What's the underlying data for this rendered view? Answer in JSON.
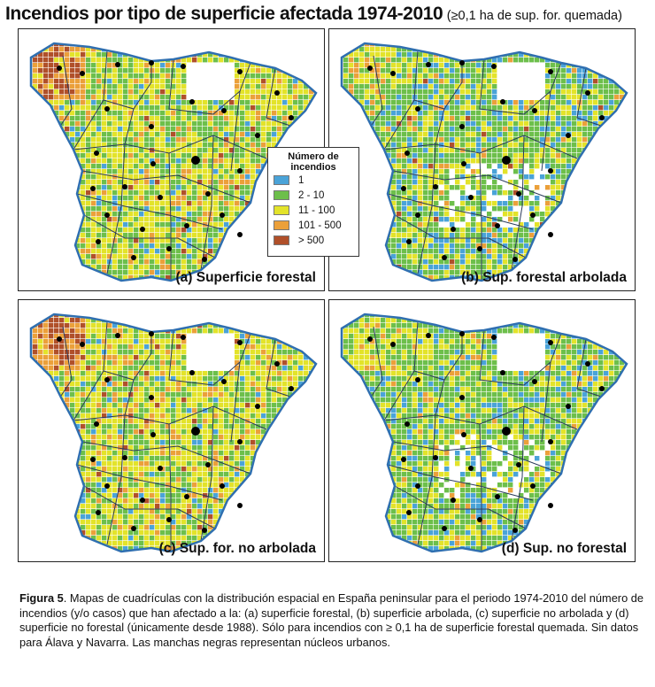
{
  "title": {
    "main": "Incendios por tipo de superficie afectada 1974-2010",
    "sub": "(≥0,1 ha de sup. for. quemada)"
  },
  "legend": {
    "title": "Número de incendios",
    "items": [
      {
        "label": "1",
        "color": "#4aa3d8"
      },
      {
        "label": "2 - 10",
        "color": "#6dbf4b"
      },
      {
        "label": "11 - 100",
        "color": "#e3e32a"
      },
      {
        "label": "101 - 500",
        "color": "#eba03a"
      },
      {
        "label": "> 500",
        "color": "#b0502a"
      }
    ]
  },
  "panels": [
    {
      "id": "a",
      "caption": "(a) Superficie forestal",
      "mix": [
        0.05,
        0.35,
        0.47,
        0.1,
        0.03
      ]
    },
    {
      "id": "b",
      "caption": "(b) Sup. forestal arbolada",
      "mix": [
        0.18,
        0.5,
        0.27,
        0.04,
        0.01
      ]
    },
    {
      "id": "c",
      "caption": "(c) Sup. for. no arbolada",
      "mix": [
        0.06,
        0.3,
        0.5,
        0.11,
        0.03
      ]
    },
    {
      "id": "d",
      "caption": "(d) Sup. no forestal",
      "mix": [
        0.16,
        0.5,
        0.3,
        0.04,
        0.0
      ]
    }
  ],
  "caption": {
    "label": "Figura 5",
    "text": ". Mapas de cuadrículas con la distribución espacial en España peninsular para el periodo 1974-2010 del número de incendios (y/o casos) que han afectado a la: (a) superficie forestal, (b) superficie arbolada, (c) superficie no arbolada y (d) superficie no forestal (únicamente desde 1988). Sólo para incendios con ≥ 0,1 ha de superficie forestal quemada. Sin datos para Álava y Navarra. Las manchas negras representan núcleos urbanos."
  }
}
